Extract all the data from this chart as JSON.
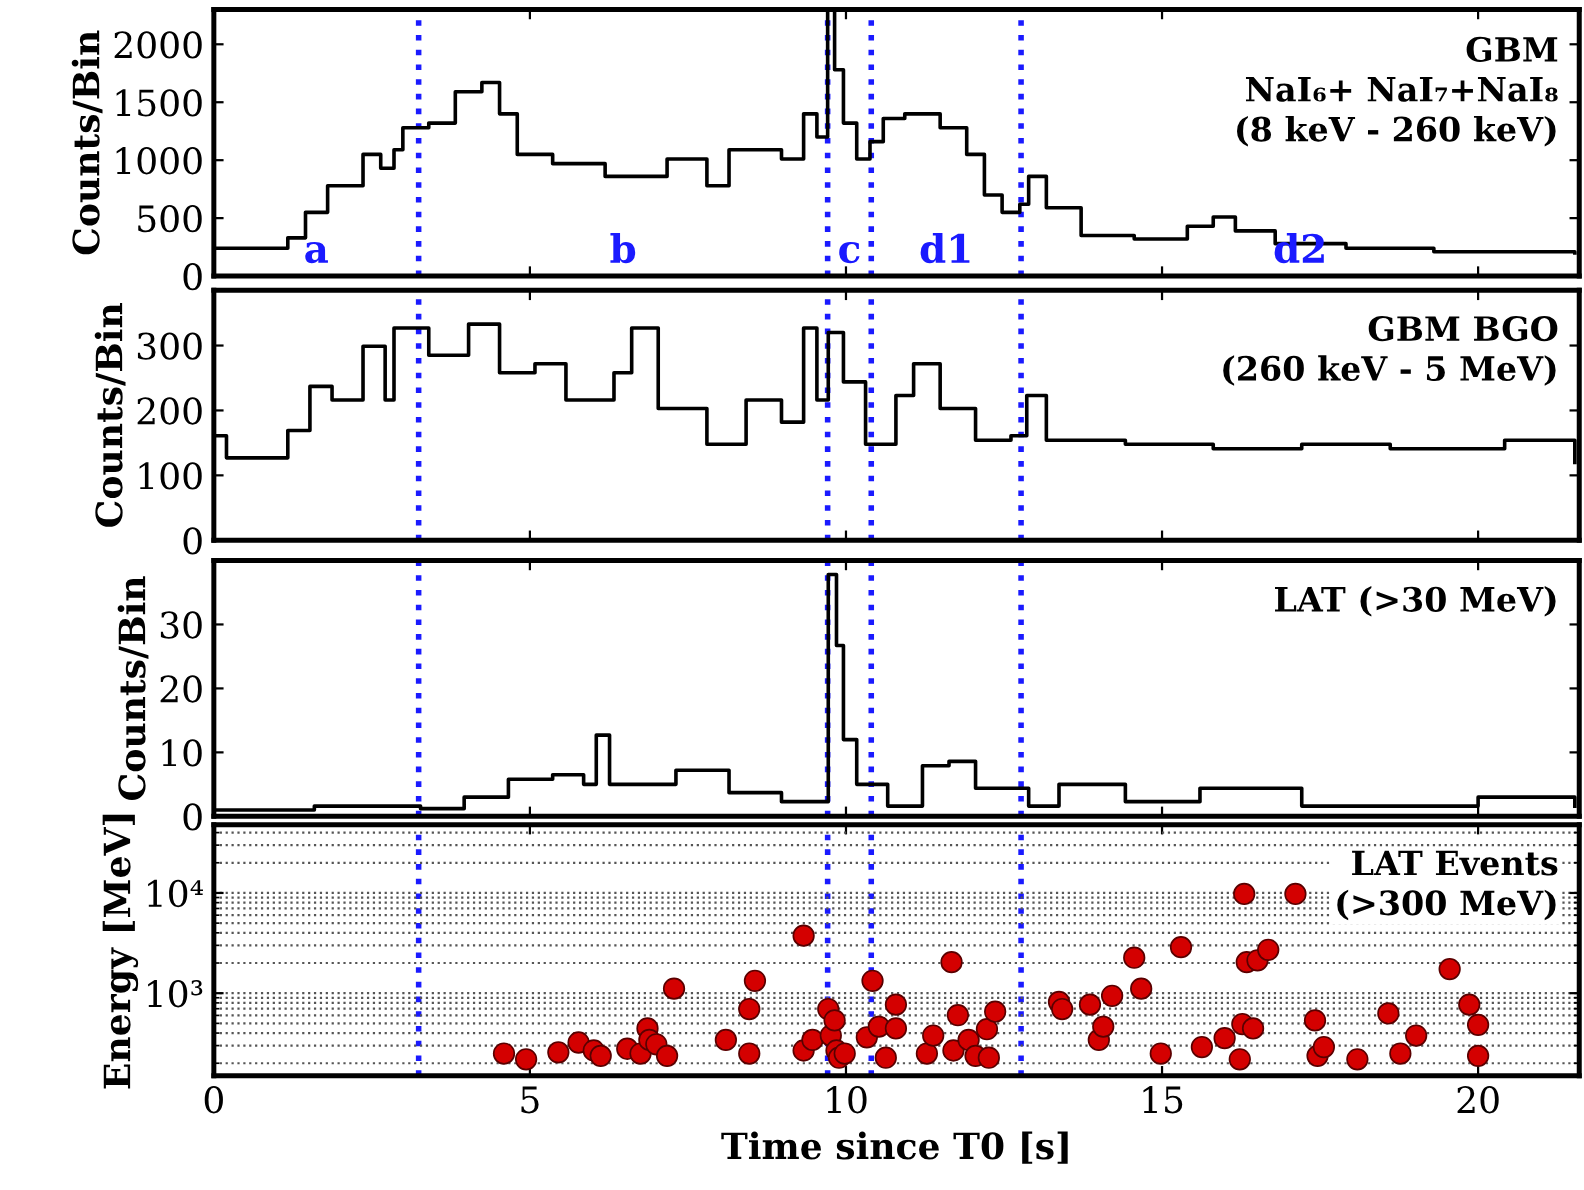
{
  "chart_data": [
    {
      "type": "step",
      "ylabel": "Counts/Bin",
      "xlim": [
        0,
        21.6
      ],
      "ylim": [
        0,
        2300
      ],
      "xticks": [
        0,
        5,
        10,
        15,
        20
      ],
      "yticks": [
        0,
        500,
        1000,
        1500,
        2000
      ],
      "tick_labels": "y",
      "series": [
        {
          "color": "#000000",
          "x": [
            0,
            1.17,
            1.45,
            1.8,
            2.36,
            2.64,
            2.85,
            2.99,
            3.4,
            3.82,
            4.24,
            4.52,
            4.8,
            5.36,
            6.19,
            7.17,
            7.8,
            8.15,
            8.98,
            9.33,
            9.54,
            9.71,
            9.82,
            9.96,
            10.17,
            10.38,
            10.59,
            10.93,
            11.49,
            11.91,
            12.19,
            12.47,
            12.75,
            12.89,
            13.17,
            13.72,
            14.56,
            15.4,
            15.81,
            16.16,
            16.79,
            17.91,
            19.3,
            21.53
          ],
          "values": [
            240,
            330,
            550,
            780,
            1050,
            930,
            1090,
            1280,
            1320,
            1590,
            1670,
            1400,
            1050,
            970,
            860,
            1010,
            780,
            1090,
            1010,
            1400,
            1200,
            2300,
            1780,
            1320,
            1010,
            1160,
            1360,
            1400,
            1280,
            1050,
            700,
            550,
            620,
            860,
            590,
            350,
            320,
            430,
            510,
            390,
            280,
            240,
            210,
            200
          ]
        }
      ],
      "ref_lines": [
        {
          "axis": "x",
          "value": 3.24,
          "color": "#1a1aff",
          "line_style": "dotted"
        },
        {
          "axis": "x",
          "value": 9.71,
          "color": "#1a1aff",
          "line_style": "dotted"
        },
        {
          "axis": "x",
          "value": 10.4,
          "color": "#1a1aff",
          "line_style": "dotted"
        },
        {
          "axis": "x",
          "value": 12.77,
          "color": "#1a1aff",
          "line_style": "dotted"
        }
      ],
      "annotations": [
        "GBM\nNaI₆+ NaI₇+NaI₈\n(8 keV - 260 keV)",
        "a",
        "b",
        "c",
        "d1",
        "d2"
      ]
    },
    {
      "type": "step",
      "ylabel": "Counts/Bin",
      "xlim": [
        0,
        21.6
      ],
      "ylim": [
        0,
        385
      ],
      "xticks": [
        0,
        5,
        10,
        15,
        20
      ],
      "yticks": [
        0,
        100,
        200,
        300
      ],
      "tick_labels": "y",
      "series": [
        {
          "color": "#000000",
          "x": [
            0,
            0.2,
            1.17,
            1.52,
            1.87,
            2.36,
            2.71,
            2.85,
            3.4,
            4.03,
            4.52,
            5.08,
            5.57,
            6.33,
            6.61,
            7.03,
            7.8,
            8.42,
            8.98,
            9.33,
            9.54,
            9.72,
            9.96,
            10.31,
            10.79,
            11.07,
            11.49,
            12.05,
            12.61,
            12.86,
            13.17,
            14.42,
            15.81,
            17.21,
            18.61,
            20.42,
            21.53
          ],
          "values": [
            161,
            127,
            169,
            237,
            216,
            299,
            216,
            327,
            285,
            333,
            258,
            272,
            216,
            258,
            327,
            203,
            148,
            216,
            182,
            327,
            216,
            320,
            244,
            148,
            223,
            272,
            203,
            154,
            161,
            223,
            154,
            148,
            141,
            148,
            141,
            154,
            120
          ]
        }
      ],
      "ref_lines": [
        {
          "axis": "x",
          "value": 3.24,
          "color": "#1a1aff",
          "line_style": "dotted"
        },
        {
          "axis": "x",
          "value": 9.71,
          "color": "#1a1aff",
          "line_style": "dotted"
        },
        {
          "axis": "x",
          "value": 10.4,
          "color": "#1a1aff",
          "line_style": "dotted"
        },
        {
          "axis": "x",
          "value": 12.77,
          "color": "#1a1aff",
          "line_style": "dotted"
        }
      ],
      "annotations": [
        "GBM BGO\n(260 keV - 5 MeV)"
      ]
    },
    {
      "type": "step",
      "ylabel": "Counts/Bin",
      "xlim": [
        0,
        21.6
      ],
      "ylim": [
        0,
        40
      ],
      "xticks": [
        0,
        5,
        10,
        15,
        20
      ],
      "yticks": [
        0,
        10,
        20,
        30
      ],
      "tick_labels": "y",
      "series": [
        {
          "color": "#000000",
          "x": [
            0,
            1.59,
            3.27,
            3.96,
            4.66,
            5.36,
            5.85,
            6.05,
            6.26,
            6.89,
            7.31,
            8.15,
            8.98,
            9.61,
            9.72,
            9.85,
            9.96,
            10.17,
            10.66,
            11.21,
            11.63,
            12.05,
            12.89,
            13.37,
            14.42,
            15.6,
            17.21,
            20.0,
            21.53
          ],
          "values": [
            1,
            1.6,
            1.2,
            3,
            5.8,
            6.5,
            5,
            12.7,
            5,
            5,
            7.2,
            3.7,
            2.3,
            2.3,
            37.8,
            26.7,
            12,
            5,
            1.6,
            7.9,
            8.6,
            4.4,
            1.6,
            5,
            2.3,
            4.4,
            1.6,
            3,
            1.6
          ]
        }
      ],
      "ref_lines": [
        {
          "axis": "x",
          "value": 3.24,
          "color": "#1a1aff",
          "line_style": "dotted"
        },
        {
          "axis": "x",
          "value": 9.71,
          "color": "#1a1aff",
          "line_style": "dotted"
        },
        {
          "axis": "x",
          "value": 10.4,
          "color": "#1a1aff",
          "line_style": "dotted"
        },
        {
          "axis": "x",
          "value": 12.77,
          "color": "#1a1aff",
          "line_style": "dotted"
        }
      ],
      "annotations": [
        "LAT (>30 MeV)"
      ]
    },
    {
      "type": "scatter",
      "xlabel": "Time since T0 [s]",
      "ylabel": "Energy [MeV]",
      "log": "y",
      "grid": "y",
      "marker": "circle",
      "xlim": [
        0,
        21.6
      ],
      "ylim": [
        150,
        48000
      ],
      "xticks": [
        0,
        5,
        10,
        15,
        20
      ],
      "yticks": [
        {
          "value": 1000,
          "label": "10³"
        },
        {
          "value": 10000,
          "label": "10⁴"
        }
      ],
      "series": [
        {
          "color": "#d40000",
          "x": [
            4.59,
            4.94,
            5.45,
            5.77,
            6.01,
            6.12,
            6.54,
            6.75,
            6.86,
            6.89,
            7.0,
            7.17,
            7.28,
            8.1,
            8.47,
            8.47,
            8.56,
            9.33,
            9.33,
            9.47,
            9.72,
            9.76,
            9.82,
            9.85,
            9.89,
            9.98,
            10.33,
            10.42,
            10.52,
            10.63,
            10.79,
            10.79,
            11.28,
            11.38,
            11.67,
            11.7,
            11.77,
            11.94,
            12.05,
            12.23,
            12.26,
            12.36,
            13.37,
            13.42,
            13.86,
            14.0,
            14.07,
            14.21,
            14.56,
            14.67,
            14.98,
            15.3,
            15.63,
            15.99,
            16.23,
            16.27,
            16.3,
            16.34,
            16.44,
            16.51,
            16.68,
            17.11,
            17.42,
            17.46,
            17.56,
            18.09,
            18.58,
            18.77,
            19.02,
            19.55,
            19.86,
            20.0,
            20.0
          ],
          "values": [
            250,
            219,
            257,
            322,
            268,
            237,
            279,
            250,
            445,
            342,
            309,
            237,
            1110,
            342,
            250,
            695,
            1330,
            3750,
            268,
            342,
            695,
            378,
            535,
            268,
            227,
            250,
            363,
            1330,
            464,
            227,
            445,
            769,
            250,
            378,
            2040,
            268,
            603,
            342,
            237,
            437,
            227,
            654,
            817,
            695,
            769,
            342,
            464,
            942,
            2260,
            1110,
            250,
            2880,
            290,
            356,
            219,
            492,
            9780,
            2040,
            445,
            2130,
            2710,
            9780,
            535,
            237,
            290,
            219,
            628,
            250,
            378,
            1740,
            769,
            483,
            237
          ]
        }
      ],
      "ref_lines": [
        {
          "axis": "x",
          "value": 3.24,
          "color": "#1a1aff",
          "line_style": "dotted"
        },
        {
          "axis": "x",
          "value": 9.71,
          "color": "#1a1aff",
          "line_style": "dotted"
        },
        {
          "axis": "x",
          "value": 10.4,
          "color": "#1a1aff",
          "line_style": "dotted"
        },
        {
          "axis": "x",
          "value": 12.77,
          "color": "#1a1aff",
          "line_style": "dotted"
        }
      ],
      "annotations": [
        "LAT Events\n(>300 MeV)"
      ]
    }
  ]
}
